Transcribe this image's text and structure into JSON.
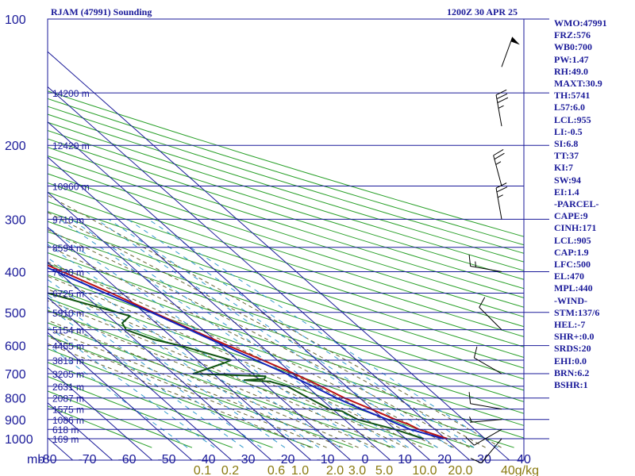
{
  "header": {
    "station": "RJAM (47991) Sounding",
    "time": "1200Z 30 APR 25"
  },
  "colors": {
    "grid": "#1a1a99",
    "dry_adiabat": "#2aa02a",
    "moist_adiabat": "#666633",
    "mixing_ratio": "#3399cc",
    "temperature": "#bb1111",
    "dewpoint": "#115511",
    "parcel": "#1122bb",
    "wind_barb": "#000000",
    "mixing_label": "#8a7a10"
  },
  "indices": [
    "WMO:47991",
    "FRZ:576",
    "WB0:700",
    "PW:1.47",
    "RH:49.0",
    "MAXT:30.9",
    "TH:5741",
    "L57:6.0",
    "LCL:955",
    "LI:-0.5",
    "SI:6.8",
    "TT:37",
    "KI:7",
    "SW:94",
    "EI:1.4",
    "-PARCEL-",
    "CAPE:9",
    "CINH:171",
    "LCL:905",
    "CAP:1.9",
    "LFC:500",
    "EL:470",
    "MPL:440",
    "-WIND-",
    "STM:137/6",
    "HEL:-7",
    "SHR+:0.0",
    "SRDS:20",
    "EHI:0.0",
    "BRN:6.2",
    "BSHR:1"
  ],
  "chart_data": {
    "type": "skew-t",
    "y_axis": {
      "label": "mb",
      "scale": "log",
      "range": [
        1050,
        100
      ],
      "ticks": [
        100,
        200,
        300,
        400,
        500,
        600,
        700,
        800,
        900,
        1000
      ]
    },
    "x_axis": {
      "range": [
        -80,
        40
      ],
      "ticks": [
        -80,
        -70,
        -60,
        -50,
        -40,
        -30,
        -20,
        -10,
        0,
        10,
        20,
        30,
        40
      ]
    },
    "height_labels": [
      {
        "p": 150,
        "label": "14200 m"
      },
      {
        "p": 200,
        "label": "12420 m"
      },
      {
        "p": 250,
        "label": "10960 m"
      },
      {
        "p": 300,
        "label": "9710 m"
      },
      {
        "p": 350,
        "label": "8594 m"
      },
      {
        "p": 400,
        "label": "7620 m"
      },
      {
        "p": 450,
        "label": "6725 m"
      },
      {
        "p": 500,
        "label": "5910 m"
      },
      {
        "p": 550,
        "label": "5154 m"
      },
      {
        "p": 600,
        "label": "4455 m"
      },
      {
        "p": 650,
        "label": "3813 m"
      },
      {
        "p": 700,
        "label": "3205 m"
      },
      {
        "p": 750,
        "label": "2631 m"
      },
      {
        "p": 800,
        "label": "2087 m"
      },
      {
        "p": 850,
        "label": "1575 m"
      },
      {
        "p": 900,
        "label": "1086 m"
      },
      {
        "p": 950,
        "label": "618 m"
      },
      {
        "p": 1000,
        "label": "169 m"
      }
    ],
    "mixing_ratio_labels": [
      "0.1",
      "0.2",
      "0.6",
      "1.0",
      "2.0",
      "3.0",
      "5.0",
      "10.0",
      "20.0",
      "40g/kg"
    ],
    "series": [
      {
        "key": "temperature",
        "points": [
          [
            1000,
            27
          ],
          [
            950,
            22.5
          ],
          [
            925,
            21.5
          ],
          [
            900,
            19.5
          ],
          [
            850,
            16.5
          ],
          [
            800,
            13
          ],
          [
            750,
            10.5
          ],
          [
            700,
            7.5
          ],
          [
            650,
            3.5
          ],
          [
            600,
            -1
          ],
          [
            550,
            -5.5
          ],
          [
            500,
            -10
          ],
          [
            450,
            -15
          ],
          [
            400,
            -21
          ],
          [
            350,
            -28
          ],
          [
            300,
            -36
          ],
          [
            250,
            -46.3
          ],
          [
            200,
            -55
          ],
          [
            175,
            -61
          ],
          [
            160,
            -61.2
          ],
          [
            150,
            -63
          ],
          [
            125,
            -65
          ],
          [
            110,
            -65.5
          ]
        ]
      },
      {
        "key": "dewpoint",
        "points": [
          [
            1000,
            21
          ],
          [
            950,
            16.5
          ],
          [
            900,
            10
          ],
          [
            860,
            8.5
          ],
          [
            850,
            6
          ],
          [
            800,
            4
          ],
          [
            750,
            2
          ],
          [
            730,
            -1
          ],
          [
            728,
            -4.5
          ],
          [
            725,
            -7
          ],
          [
            720,
            -1.5
          ],
          [
            710,
            -0.5
          ],
          [
            700,
            -18
          ],
          [
            660,
            -7
          ],
          [
            650,
            -4.5
          ],
          [
            600,
            -13
          ],
          [
            580,
            -18
          ],
          [
            550,
            -22
          ],
          [
            530,
            -21
          ],
          [
            520,
            -19
          ],
          [
            510,
            -17
          ],
          [
            450,
            -31
          ],
          [
            400,
            -35.5
          ],
          [
            395,
            -36
          ],
          [
            350,
            -41
          ],
          [
            300,
            -50
          ],
          [
            280,
            -50
          ],
          [
            260,
            -45.5
          ]
        ]
      },
      {
        "key": "parcel",
        "points": [
          [
            1000,
            26
          ],
          [
            955,
            21
          ],
          [
            950,
            20.3
          ],
          [
            900,
            17.5
          ],
          [
            850,
            14
          ],
          [
            800,
            11
          ],
          [
            750,
            8.5
          ],
          [
            700,
            5.5
          ],
          [
            650,
            1.8
          ],
          [
            600,
            -2
          ],
          [
            550,
            -6
          ],
          [
            500,
            -10.5
          ],
          [
            450,
            -16.5
          ],
          [
            400,
            -22.5
          ],
          [
            350,
            -29.5
          ],
          [
            300,
            -38
          ],
          [
            250,
            -48
          ],
          [
            200,
            -60
          ],
          [
            150,
            -77
          ],
          [
            135,
            -84
          ]
        ]
      }
    ],
    "wind_barbs": [
      {
        "p": 1000,
        "dir": 220,
        "spd": 10
      },
      {
        "p": 950,
        "dir": 240,
        "spd": 10
      },
      {
        "p": 900,
        "dir": 265,
        "spd": 5
      },
      {
        "p": 850,
        "dir": 280,
        "spd": 10
      },
      {
        "p": 700,
        "dir": 300,
        "spd": 10
      },
      {
        "p": 550,
        "dir": 315,
        "spd": 10
      },
      {
        "p": 400,
        "dir": 280,
        "spd": 15
      },
      {
        "p": 300,
        "dir": 350,
        "spd": 25
      },
      {
        "p": 250,
        "dir": 345,
        "spd": 25
      },
      {
        "p": 180,
        "dir": 350,
        "spd": 35
      },
      {
        "p": 130,
        "dir": 20,
        "spd": 50
      }
    ]
  }
}
